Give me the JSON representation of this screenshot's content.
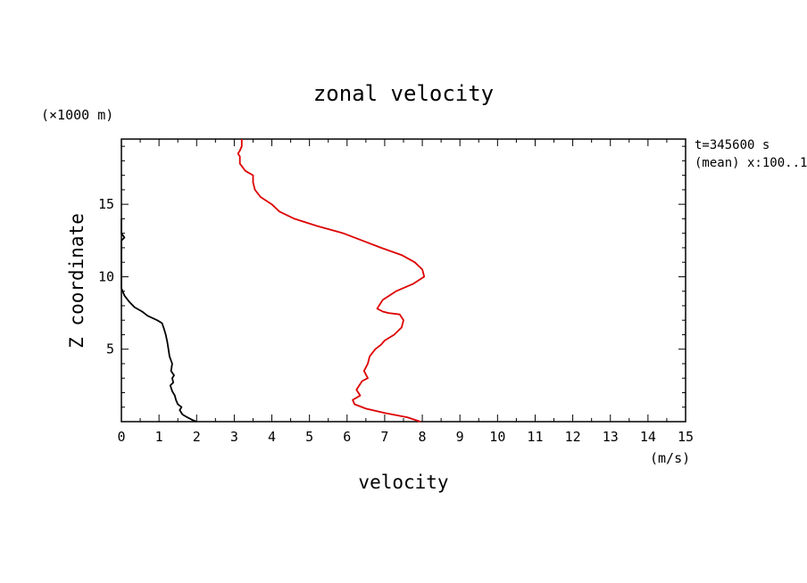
{
  "chart_data": {
    "type": "line",
    "title": "zonal velocity",
    "xlabel": "velocity",
    "ylabel": "Z coordinate",
    "x_unit": "(m/s)",
    "y_unit": "(×1000 m)",
    "info_lines": [
      "t=345600 s",
      "(mean) x:100..1"
    ],
    "xlim": [
      0,
      15
    ],
    "ylim": [
      0,
      19.5
    ],
    "x_ticks": [
      "0",
      "1",
      "2",
      "3",
      "4",
      "5",
      "6",
      "7",
      "8",
      "9",
      "10",
      "11",
      "12",
      "13",
      "14",
      "15"
    ],
    "y_ticks": [
      "5",
      "10",
      "15"
    ],
    "grid": false,
    "series": [
      {
        "color": "#000000",
        "points": [
          [
            2.0,
            0.0
          ],
          [
            1.9,
            0.1
          ],
          [
            1.75,
            0.3
          ],
          [
            1.62,
            0.5
          ],
          [
            1.55,
            0.8
          ],
          [
            1.6,
            1.0
          ],
          [
            1.5,
            1.2
          ],
          [
            1.45,
            1.5
          ],
          [
            1.42,
            1.8
          ],
          [
            1.35,
            2.1
          ],
          [
            1.3,
            2.5
          ],
          [
            1.38,
            2.7
          ],
          [
            1.35,
            3.0
          ],
          [
            1.4,
            3.2
          ],
          [
            1.32,
            3.5
          ],
          [
            1.35,
            4.0
          ],
          [
            1.28,
            4.5
          ],
          [
            1.25,
            5.0
          ],
          [
            1.22,
            5.5
          ],
          [
            1.18,
            6.0
          ],
          [
            1.12,
            6.5
          ],
          [
            1.08,
            6.8
          ],
          [
            0.95,
            7.0
          ],
          [
            0.7,
            7.3
          ],
          [
            0.55,
            7.6
          ],
          [
            0.35,
            7.9
          ],
          [
            0.2,
            8.3
          ],
          [
            0.08,
            8.7
          ],
          [
            0.0,
            9.2
          ],
          [
            0.0,
            10.0
          ],
          [
            0.0,
            12.5
          ],
          [
            0.08,
            12.7
          ],
          [
            0.0,
            13.0
          ],
          [
            0.0,
            14.0
          ]
        ]
      },
      {
        "color": "#dd0000",
        "points": [
          [
            7.95,
            0.0
          ],
          [
            7.6,
            0.3
          ],
          [
            7.0,
            0.6
          ],
          [
            6.5,
            0.9
          ],
          [
            6.2,
            1.2
          ],
          [
            6.15,
            1.5
          ],
          [
            6.35,
            1.8
          ],
          [
            6.25,
            2.2
          ],
          [
            6.35,
            2.6
          ],
          [
            6.4,
            2.8
          ],
          [
            6.55,
            3.0
          ],
          [
            6.45,
            3.5
          ],
          [
            6.55,
            4.0
          ],
          [
            6.6,
            4.5
          ],
          [
            6.75,
            5.0
          ],
          [
            6.9,
            5.3
          ],
          [
            7.0,
            5.6
          ],
          [
            7.25,
            6.0
          ],
          [
            7.45,
            6.5
          ],
          [
            7.5,
            7.0
          ],
          [
            7.4,
            7.4
          ],
          [
            7.1,
            7.5
          ],
          [
            6.95,
            7.6
          ],
          [
            6.8,
            7.8
          ],
          [
            6.95,
            8.4
          ],
          [
            7.3,
            9.0
          ],
          [
            7.75,
            9.5
          ],
          [
            8.05,
            10.0
          ],
          [
            8.0,
            10.5
          ],
          [
            7.8,
            11.0
          ],
          [
            7.45,
            11.5
          ],
          [
            6.9,
            12.0
          ],
          [
            6.4,
            12.5
          ],
          [
            5.9,
            13.0
          ],
          [
            5.2,
            13.5
          ],
          [
            4.6,
            14.0
          ],
          [
            4.2,
            14.5
          ],
          [
            4.0,
            15.0
          ],
          [
            3.7,
            15.5
          ],
          [
            3.55,
            16.0
          ],
          [
            3.5,
            16.5
          ],
          [
            3.5,
            17.0
          ],
          [
            3.3,
            17.3
          ],
          [
            3.15,
            17.8
          ],
          [
            3.15,
            18.3
          ],
          [
            3.1,
            18.5
          ],
          [
            3.15,
            18.7
          ],
          [
            3.2,
            19.0
          ],
          [
            3.2,
            19.5
          ]
        ]
      }
    ]
  }
}
